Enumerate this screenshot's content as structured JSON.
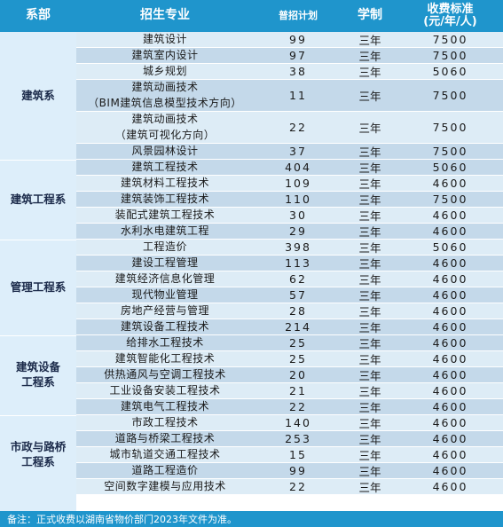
{
  "header": {
    "department": "系部",
    "major": "招生专业",
    "plan": "普招计划",
    "years": "学制",
    "fee_line1": "收费标准",
    "fee_line2": "(元/年/人)"
  },
  "departments": [
    {
      "name_lines": [
        "建筑系"
      ]
    },
    {
      "name_lines": [
        "建筑工程系"
      ]
    },
    {
      "name_lines": [
        "管理工程系"
      ]
    },
    {
      "name_lines": [
        "建筑设备",
        "工程系"
      ]
    },
    {
      "name_lines": [
        "市政与路桥",
        "工程系"
      ]
    }
  ],
  "rows": [
    {
      "major_lines": [
        "建筑设计"
      ],
      "plan": "99",
      "years": "三年",
      "fee": "7500"
    },
    {
      "major_lines": [
        "建筑室内设计"
      ],
      "plan": "97",
      "years": "三年",
      "fee": "7500"
    },
    {
      "major_lines": [
        "城乡规划"
      ],
      "plan": "38",
      "years": "三年",
      "fee": "5060"
    },
    {
      "major_lines": [
        "建筑动画技术",
        "（BIM建筑信息模型技术方向）"
      ],
      "plan": "11",
      "years": "三年",
      "fee": "7500"
    },
    {
      "major_lines": [
        "建筑动画技术",
        "（建筑可视化方向）"
      ],
      "plan": "22",
      "years": "三年",
      "fee": "7500"
    },
    {
      "major_lines": [
        "风景园林设计"
      ],
      "plan": "37",
      "years": "三年",
      "fee": "7500"
    },
    {
      "major_lines": [
        "建筑工程技术"
      ],
      "plan": "404",
      "years": "三年",
      "fee": "5060"
    },
    {
      "major_lines": [
        "建筑材料工程技术"
      ],
      "plan": "109",
      "years": "三年",
      "fee": "4600"
    },
    {
      "major_lines": [
        "建筑装饰工程技术"
      ],
      "plan": "110",
      "years": "三年",
      "fee": "7500"
    },
    {
      "major_lines": [
        "装配式建筑工程技术"
      ],
      "plan": "30",
      "years": "三年",
      "fee": "4600"
    },
    {
      "major_lines": [
        "水利水电建筑工程"
      ],
      "plan": "29",
      "years": "三年",
      "fee": "4600"
    },
    {
      "major_lines": [
        "工程造价"
      ],
      "plan": "398",
      "years": "三年",
      "fee": "5060"
    },
    {
      "major_lines": [
        "建设工程管理"
      ],
      "plan": "113",
      "years": "三年",
      "fee": "4600"
    },
    {
      "major_lines": [
        "建筑经济信息化管理"
      ],
      "plan": "62",
      "years": "三年",
      "fee": "4600"
    },
    {
      "major_lines": [
        "现代物业管理"
      ],
      "plan": "57",
      "years": "三年",
      "fee": "4600"
    },
    {
      "major_lines": [
        "房地产经营与管理"
      ],
      "plan": "28",
      "years": "三年",
      "fee": "4600"
    },
    {
      "major_lines": [
        "建筑设备工程技术"
      ],
      "plan": "214",
      "years": "三年",
      "fee": "4600"
    },
    {
      "major_lines": [
        "给排水工程技术"
      ],
      "plan": "25",
      "years": "三年",
      "fee": "4600"
    },
    {
      "major_lines": [
        "建筑智能化工程技术"
      ],
      "plan": "25",
      "years": "三年",
      "fee": "4600"
    },
    {
      "major_lines": [
        "供热通风与空调工程技术"
      ],
      "plan": "20",
      "years": "三年",
      "fee": "4600"
    },
    {
      "major_lines": [
        "工业设备安装工程技术"
      ],
      "plan": "21",
      "years": "三年",
      "fee": "4600"
    },
    {
      "major_lines": [
        "建筑电气工程技术"
      ],
      "plan": "22",
      "years": "三年",
      "fee": "4600"
    },
    {
      "major_lines": [
        "市政工程技术"
      ],
      "plan": "140",
      "years": "三年",
      "fee": "4600"
    },
    {
      "major_lines": [
        "道路与桥梁工程技术"
      ],
      "plan": "253",
      "years": "三年",
      "fee": "4600"
    },
    {
      "major_lines": [
        "城市轨道交通工程技术"
      ],
      "plan": "15",
      "years": "三年",
      "fee": "4600"
    },
    {
      "major_lines": [
        "道路工程造价"
      ],
      "plan": "99",
      "years": "三年",
      "fee": "4600"
    },
    {
      "major_lines": [
        "空间数字建模与应用技术"
      ],
      "plan": "22",
      "years": "三年",
      "fee": "4600"
    }
  ],
  "footer": {
    "note": "备注：正式收费以湖南省物价部门2023年文件为准。"
  }
}
